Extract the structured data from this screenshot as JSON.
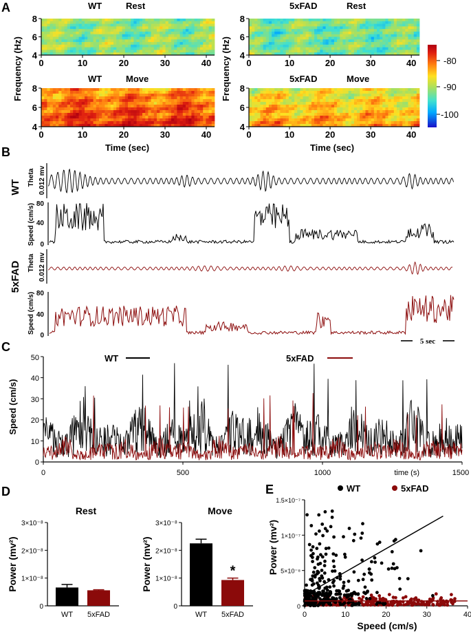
{
  "panel_A": {
    "letter": "A",
    "titles": [
      {
        "genotype": "WT",
        "state": "Rest"
      },
      {
        "genotype": "5xFAD",
        "state": "Rest"
      },
      {
        "genotype": "WT",
        "state": "Move"
      },
      {
        "genotype": "5xFAD",
        "state": "Move"
      }
    ],
    "ylabel": "Frequency (Hz)",
    "xlabel": "Time (sec)",
    "colorbar_ticks": [
      "-80",
      "-90",
      "-100"
    ],
    "colormap": [
      "#1a10c8",
      "#00a8ff",
      "#40e0d0",
      "#a8e060",
      "#ffe020",
      "#ff8010",
      "#e02010",
      "#b00010"
    ]
  },
  "panel_B": {
    "letter": "B",
    "groups": [
      {
        "label": "WT",
        "theta_label": "Theta",
        "theta_scale": "0.012 mv",
        "speed_label": "Speed (cm/s)",
        "speed_ticks": [
          "80",
          "40",
          "0"
        ],
        "color": "#000000"
      },
      {
        "label": "5xFAD",
        "theta_label": "Theta",
        "theta_scale": "0.012 mv",
        "speed_label": "Speed (cm/s)",
        "speed_ticks": [
          "80",
          "40",
          "0"
        ],
        "color": "#8b0a0a"
      }
    ],
    "scalebar": "5 sec"
  },
  "panel_C": {
    "letter": "C",
    "legend": [
      {
        "name": "WT",
        "color": "#000000"
      },
      {
        "name": "5xFAD",
        "color": "#8b0a0a"
      }
    ],
    "ylabel": "Speed (cm/s)",
    "xlabel": "time (s)",
    "yticks": [
      "50",
      "40",
      "30",
      "20",
      "10",
      "0"
    ],
    "xticks": [
      "0",
      "500",
      "1000",
      "1500"
    ]
  },
  "panel_D": {
    "letter": "D",
    "ylabel": "Power (mv²)",
    "yticks": [
      "3×10⁻⁸",
      "2×10⁻⁸",
      "1×10⁻⁸",
      "0"
    ],
    "significance": "*"
  },
  "panel_E": {
    "letter": "E",
    "ylabel": "Power (mv²)",
    "xlabel": "Speed (cm/s)",
    "yticks": [
      "1.5×10⁻⁷",
      "1×10⁻⁷",
      "5×10⁻⁸",
      "0"
    ],
    "xticks": [
      "0",
      "10",
      "20",
      "30",
      "40"
    ],
    "legend": [
      {
        "name": "WT",
        "color": "#000000"
      },
      {
        "name": "5xFAD",
        "color": "#8b0a0a"
      }
    ]
  },
  "chart_data": [
    {
      "type": "heatmap",
      "panel": "A",
      "title": "WT Rest",
      "xlabel": "Time (sec)",
      "ylabel": "Frequency (Hz)",
      "xlim": [
        0,
        42
      ],
      "ylim": [
        4,
        8
      ],
      "xticks": [
        0,
        10,
        20,
        30,
        40
      ],
      "yticks": [
        4,
        6,
        8
      ],
      "color_range": [
        -105,
        -75
      ],
      "mean_power": -93
    },
    {
      "type": "heatmap",
      "panel": "A",
      "title": "5xFAD Rest",
      "xlabel": "Time (sec)",
      "ylabel": "Frequency (Hz)",
      "xlim": [
        0,
        42
      ],
      "ylim": [
        4,
        8
      ],
      "xticks": [
        0,
        10,
        20,
        30,
        40
      ],
      "yticks": [
        4,
        6,
        8
      ],
      "color_range": [
        -105,
        -75
      ],
      "mean_power": -94
    },
    {
      "type": "heatmap",
      "panel": "A",
      "title": "WT Move",
      "xlabel": "Time (sec)",
      "ylabel": "Frequency (Hz)",
      "xlim": [
        0,
        42
      ],
      "ylim": [
        4,
        8
      ],
      "xticks": [
        0,
        10,
        20,
        30,
        40
      ],
      "yticks": [
        4,
        6,
        8
      ],
      "color_range": [
        -105,
        -75
      ],
      "mean_power": -82
    },
    {
      "type": "heatmap",
      "panel": "A",
      "title": "5xFAD Move",
      "xlabel": "Time (sec)",
      "ylabel": "Frequency (Hz)",
      "xlim": [
        0,
        42
      ],
      "ylim": [
        4,
        8
      ],
      "xticks": [
        0,
        10,
        20,
        30,
        40
      ],
      "yticks": [
        4,
        6,
        8
      ],
      "color_range": [
        -105,
        -75
      ],
      "mean_power": -87
    },
    {
      "type": "line",
      "panel": "C",
      "xlabel": "time (s)",
      "ylabel": "Speed (cm/s)",
      "xlim": [
        0,
        1500
      ],
      "ylim": [
        0,
        50
      ],
      "xticks": [
        0,
        500,
        1000,
        1500
      ],
      "yticks": [
        0,
        10,
        20,
        30,
        40,
        50
      ],
      "series": [
        {
          "name": "WT",
          "color": "#000000",
          "approx_mean": 12,
          "approx_max": 48
        },
        {
          "name": "5xFAD",
          "color": "#8b0a0a",
          "approx_mean": 5,
          "approx_max": 33
        }
      ]
    },
    {
      "type": "bar",
      "panel": "D",
      "title": "Rest",
      "categories": [
        "WT",
        "5xFAD"
      ],
      "values": [
        6.6e-09,
        5.6e-09
      ],
      "errors": [
        1.1e-09,
        2e-10
      ],
      "colors": [
        "#000000",
        "#8b0a0a"
      ],
      "ylabel": "Power (mv²)",
      "ylim": [
        0,
        3e-08
      ]
    },
    {
      "type": "bar",
      "panel": "D",
      "title": "Move",
      "categories": [
        "WT",
        "5xFAD"
      ],
      "values": [
        2.25e-08,
        9.3e-09
      ],
      "errors": [
        1.5e-09,
        7e-10
      ],
      "colors": [
        "#000000",
        "#8b0a0a"
      ],
      "ylabel": "Power (mv²)",
      "ylim": [
        0,
        3e-08
      ],
      "significant": "5xFAD"
    },
    {
      "type": "scatter",
      "panel": "E",
      "xlabel": "Speed (cm/s)",
      "ylabel": "Power (mv²)",
      "xlim": [
        0,
        40
      ],
      "ylim": [
        0,
        1.5e-07
      ],
      "xticks": [
        0,
        10,
        20,
        30,
        40
      ],
      "series": [
        {
          "name": "WT",
          "color": "#000000",
          "fit_line": [
            [
              0,
              1.5e-08
            ],
            [
              34,
              1.27e-07
            ]
          ]
        },
        {
          "name": "5xFAD",
          "color": "#8b0a0a",
          "fit_line": [
            [
              0,
              7e-09
            ],
            [
              40,
              7e-09
            ]
          ]
        }
      ]
    }
  ]
}
